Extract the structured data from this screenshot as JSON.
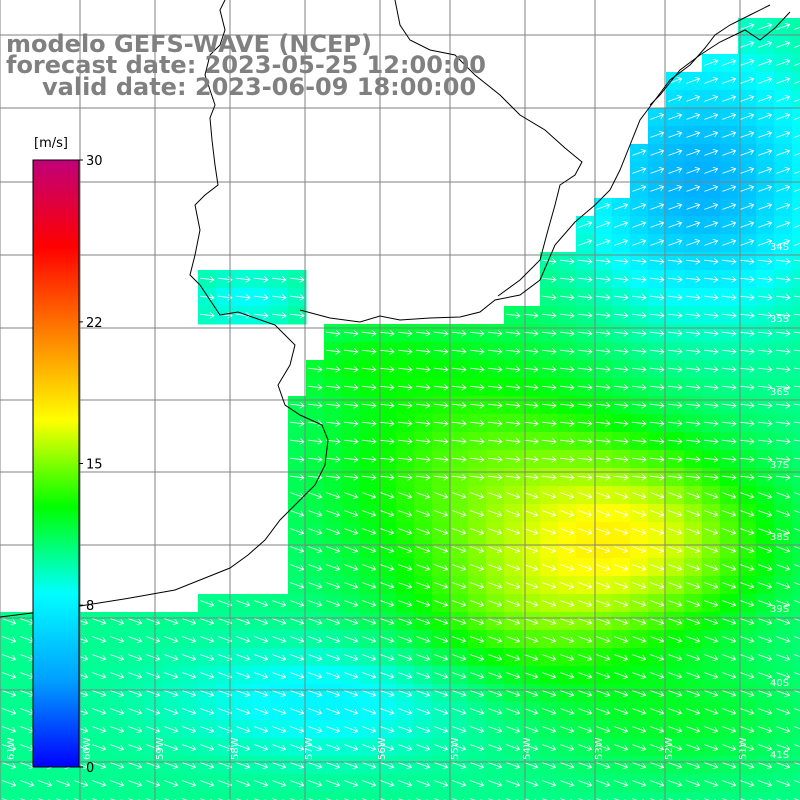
{
  "title": {
    "line1": "modelo GEFS-WAVE (NCEP)",
    "line2": "forecast date: 2023-05-25 12:00:00",
    "line3": "valid date: 2023-06-09 18:00:00"
  },
  "colorbar": {
    "unit": "[m/s]",
    "min": 0,
    "max": 30,
    "ticks": [
      "30",
      "22",
      "15",
      "8",
      "0"
    ],
    "tick_values": [
      30,
      22,
      15,
      8,
      0
    ],
    "colors": [
      "#0000ff",
      "#00a0ff",
      "#00ffff",
      "#00ff00",
      "#ffff00",
      "#ff8000",
      "#ff0000",
      "#c0007a"
    ]
  },
  "grid": {
    "lat_labels": [
      "34S",
      "35S",
      "36S",
      "37S",
      "38S",
      "39S",
      "40S",
      "41S"
    ],
    "lon_labels": [
      "61W",
      "60W",
      "59W",
      "58W",
      "57W",
      "56W",
      "55W",
      "54W",
      "53W",
      "52W",
      "51W"
    ]
  },
  "field_colors": {
    "land": "#ffffff",
    "coast": "#000000",
    "grid_line": "#808080",
    "arrow": "#ffffff"
  }
}
